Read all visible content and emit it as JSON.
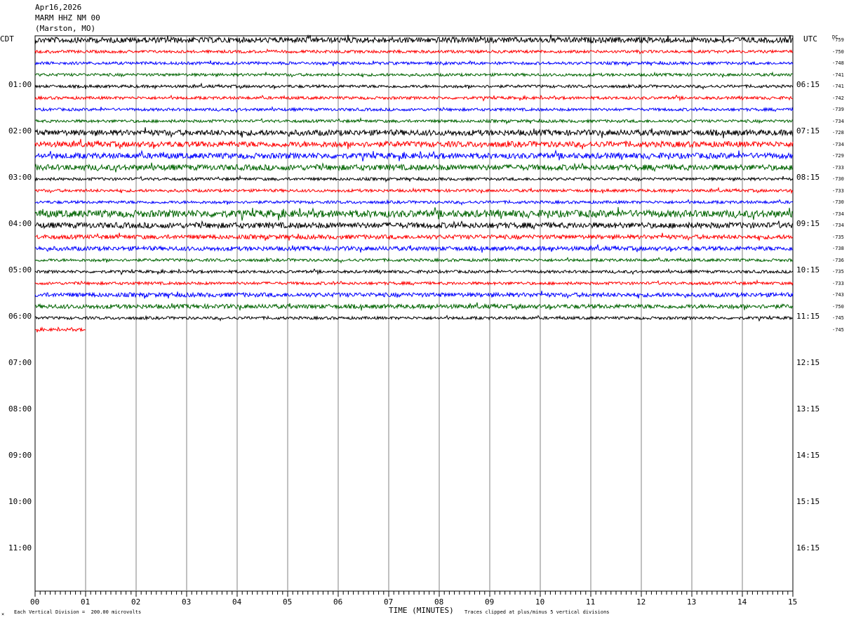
{
  "header": {
    "date": "Apr16,2026",
    "station": "MARM HHZ NM 00",
    "location": "(Marston, MO)"
  },
  "left_tz": "CDT",
  "right_tz": "UTC",
  "dc_label": "DC",
  "footer": {
    "scale": "Each Vertical Division =  200.00 microvolts",
    "xlabel": "TIME (MINUTES)",
    "clip_note": "Traces clipped at plus/minus 5 vertical divisions"
  },
  "colors": {
    "black": "#000000",
    "red": "#ff0000",
    "blue": "#0000ff",
    "green": "#006400",
    "grid": "#808080"
  },
  "chart_data": {
    "type": "line",
    "title": "MARM HHZ NM 00",
    "xlabel": "TIME (MINUTES)",
    "x_ticks": [
      "00",
      "01",
      "02",
      "03",
      "04",
      "05",
      "06",
      "07",
      "08",
      "09",
      "10",
      "11",
      "12",
      "13",
      "14",
      "15"
    ],
    "xlim": [
      0,
      15
    ],
    "left_hours": [
      "01:00",
      "02:00",
      "03:00",
      "04:00",
      "05:00",
      "06:00",
      "07:00",
      "08:00",
      "09:00",
      "10:00",
      "11:00"
    ],
    "right_hours": [
      "06:15",
      "07:15",
      "08:15",
      "09:15",
      "10:15",
      "11:15",
      "12:15",
      "13:15",
      "14:15",
      "15:15",
      "16:15"
    ],
    "trace_colors": [
      "black",
      "red",
      "blue",
      "green"
    ],
    "dc_offsets": [
      "-759",
      "-750",
      "-748",
      "-741",
      "-741",
      "-742",
      "-739",
      "-734",
      "-728",
      "-734",
      "-729",
      "-733",
      "-730",
      "-733",
      "-730",
      "-734",
      "-734",
      "-735",
      "-738",
      "-736",
      "-735",
      "-733",
      "-743",
      "-750",
      "-745",
      "-745"
    ],
    "trace_amplitudes": [
      4,
      2,
      2,
      2,
      2,
      2,
      2,
      2,
      4,
      4,
      4,
      4,
      2,
      2,
      2,
      5,
      4,
      3,
      3,
      2,
      2,
      2,
      3,
      3,
      2,
      2
    ],
    "last_trace_minutes": 1
  }
}
